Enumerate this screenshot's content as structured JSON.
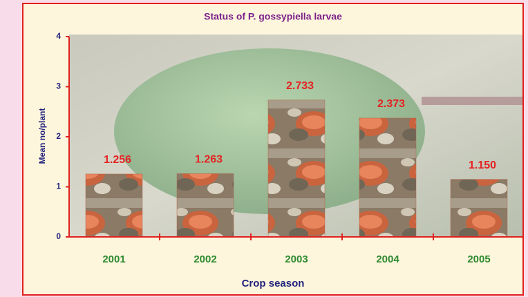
{
  "chart_data": {
    "type": "bar",
    "title": "Status of P. gossypiella larvae",
    "x_label": "Crop season",
    "y_label": "Mean no/plant",
    "categories": [
      "2001",
      "2002",
      "2003",
      "2004",
      "2005"
    ],
    "values": [
      1.256,
      1.263,
      2.733,
      2.373,
      1.15
    ],
    "value_labels": [
      "1.256",
      "1.263",
      "2.733",
      "2.373",
      "1.150"
    ],
    "color": "#b5654a",
    "ylim": [
      0,
      4
    ],
    "yticks": [
      0,
      1,
      2,
      3,
      4
    ],
    "grid": false
  }
}
